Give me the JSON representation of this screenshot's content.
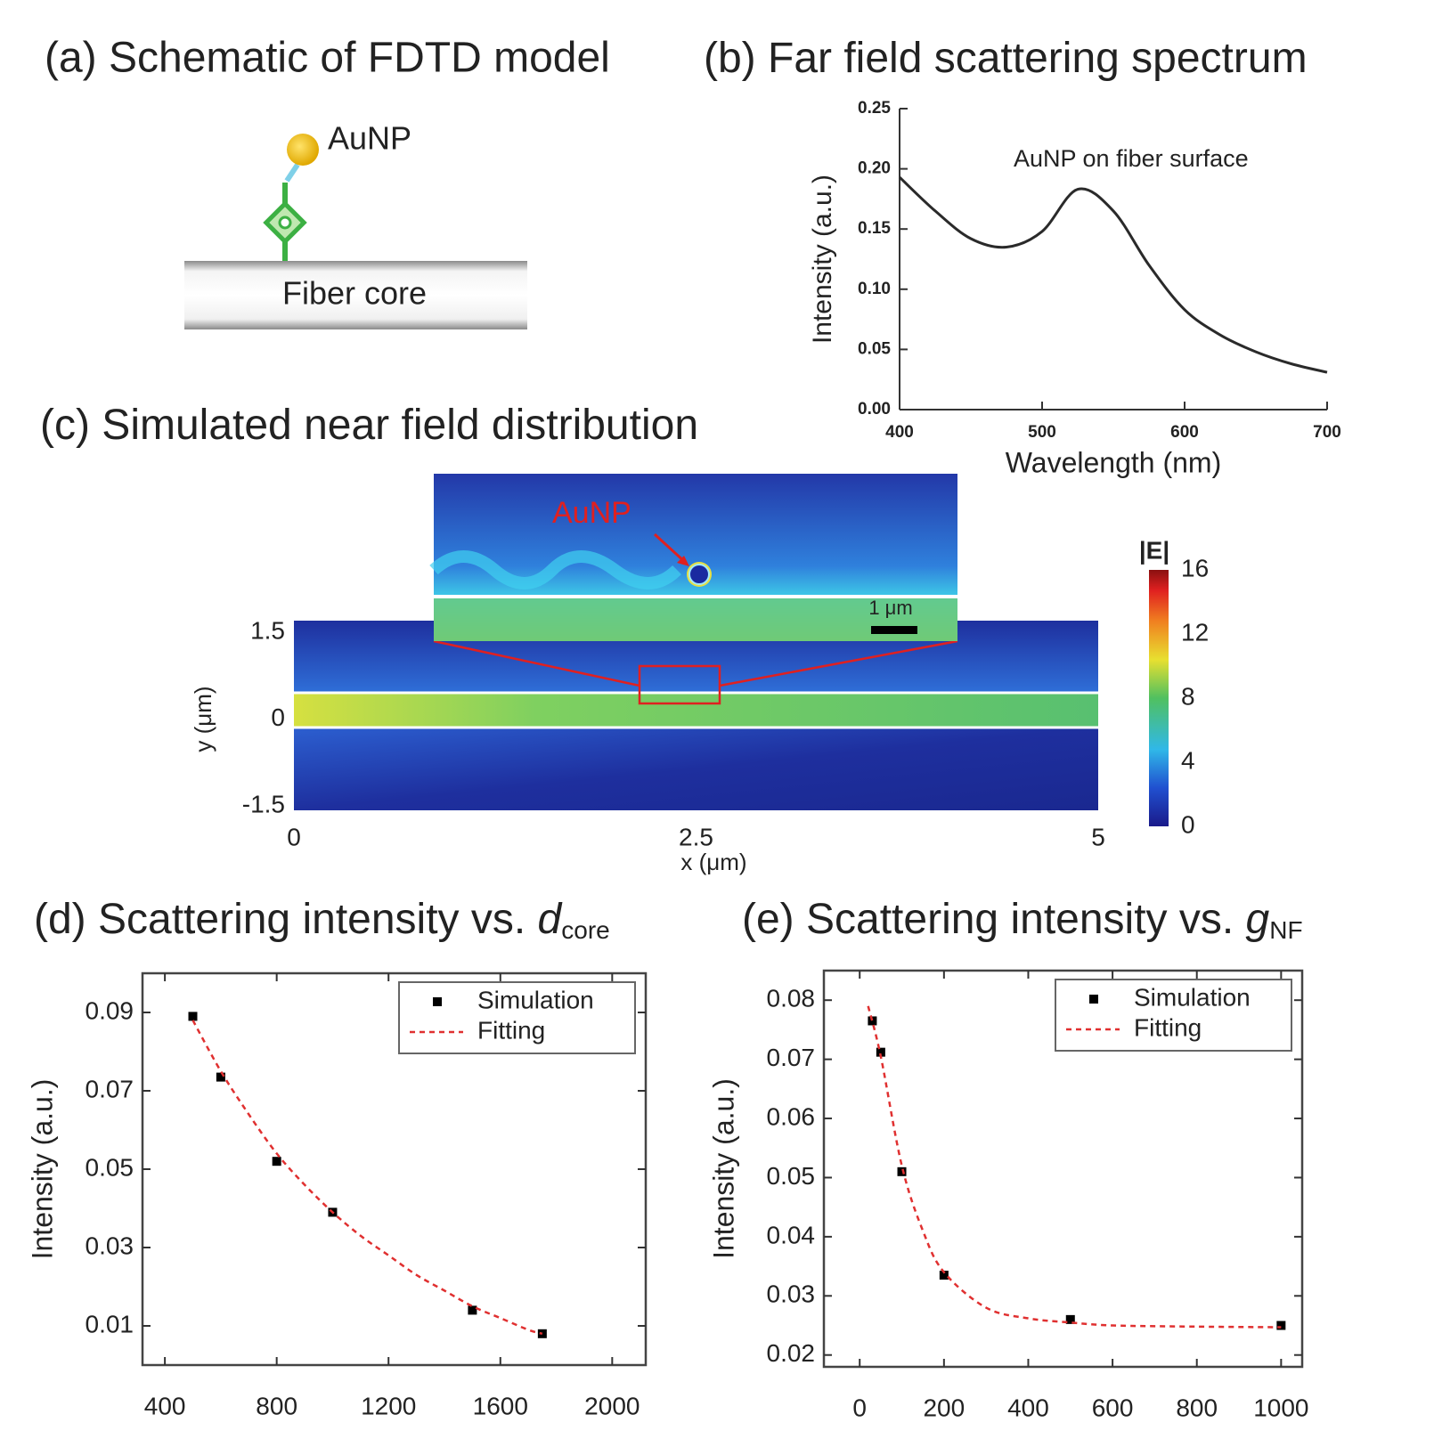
{
  "schematic": {
    "title": "(a) Schematic of FDTD model",
    "particle_label": "AuNP",
    "core_label": "Fiber core"
  },
  "chart_data": [
    {
      "type": "line",
      "title": "(b) Far field scattering spectrum",
      "annotation": "AuNP on fiber surface",
      "x_label": "Wavelength (nm)",
      "y_label": "Intensity (a.u.)",
      "x": [
        400,
        425,
        450,
        475,
        500,
        525,
        550,
        575,
        600,
        625,
        650,
        675,
        700
      ],
      "values": [
        0.193,
        0.165,
        0.142,
        0.135,
        0.148,
        0.183,
        0.165,
        0.12,
        0.083,
        0.062,
        0.048,
        0.038,
        0.031
      ],
      "color": "#2a2a2a",
      "xlim": [
        400,
        700
      ],
      "xticks": [
        400,
        500,
        600,
        700
      ],
      "ylim": [
        0,
        0.25
      ],
      "yticks": [
        {
          "value": 0,
          "label": "0.00"
        },
        0.05,
        {
          "value": 0.1,
          "label": "0.10"
        },
        0.15,
        {
          "value": 0.2,
          "label": "0.20"
        },
        0.25
      ]
    },
    {
      "type": "heatmap",
      "title": "(c) Simulated near field distribution",
      "annotation": "AuNP",
      "scale_label": "1 μm",
      "x_label": "x (μm)",
      "y_label": "y (μm)",
      "xlim": [
        0,
        5
      ],
      "xticks": [
        0,
        2.5,
        5
      ],
      "ylim": [
        -1.5,
        1.5
      ],
      "yticks": [
        -1.5,
        0,
        1.5
      ],
      "colorbar": {
        "label": "|E|",
        "lim": [
          0,
          16
        ],
        "ticks": [
          0,
          4,
          8,
          12,
          16
        ]
      }
    },
    {
      "type": "scatter",
      "title": "(d) Scattering intensity vs. ",
      "title_symbol": "d",
      "title_subscript": "core",
      "y_label": "Intensity (a.u.)",
      "legend": "upper right",
      "xlim": [
        320,
        2120
      ],
      "xticks": [
        400,
        800,
        1200,
        1600,
        2000
      ],
      "ylim": [
        0,
        0.1
      ],
      "yticks": [
        0.01,
        0.03,
        0.05,
        0.07,
        0.09
      ],
      "series": [
        {
          "name": "Simulation",
          "color": "#000000",
          "mode": "markers",
          "x": [
            500,
            600,
            800,
            1000,
            1500,
            1750
          ],
          "values": [
            0.089,
            0.0735,
            0.052,
            0.039,
            0.014,
            0.008
          ]
        },
        {
          "name": "Fitting",
          "color": "#e03030",
          "mode": "dashed",
          "x": [
            500,
            600,
            700,
            800,
            900,
            1000,
            1100,
            1200,
            1300,
            1400,
            1500,
            1600,
            1700,
            1750
          ],
          "values": [
            0.088,
            0.075,
            0.064,
            0.054,
            0.046,
            0.039,
            0.033,
            0.028,
            0.023,
            0.019,
            0.015,
            0.012,
            0.009,
            0.008
          ]
        }
      ]
    },
    {
      "type": "scatter",
      "title": "(e) Scattering intensity vs. ",
      "title_symbol": "g",
      "title_subscript": "NF",
      "y_label": "Intensity (a.u.)",
      "legend": "upper right",
      "xlim": [
        -85,
        1050
      ],
      "xticks": [
        0,
        200,
        400,
        600,
        800,
        1000
      ],
      "ylim": [
        0.018,
        0.085
      ],
      "yticks": [
        0.02,
        0.03,
        0.04,
        0.05,
        0.06,
        0.07,
        0.08
      ],
      "series": [
        {
          "name": "Simulation",
          "color": "#000000",
          "mode": "markers",
          "x": [
            30,
            50,
            100,
            200,
            500,
            1000
          ],
          "values": [
            0.0765,
            0.0712,
            0.051,
            0.0335,
            0.026,
            0.025
          ]
        },
        {
          "name": "Fitting",
          "color": "#e03030",
          "mode": "dashed",
          "x": [
            20,
            50,
            100,
            150,
            200,
            300,
            400,
            500,
            600,
            800,
            1000
          ],
          "values": [
            0.079,
            0.0705,
            0.052,
            0.041,
            0.034,
            0.028,
            0.0262,
            0.0255,
            0.025,
            0.0248,
            0.0247
          ]
        }
      ]
    }
  ]
}
